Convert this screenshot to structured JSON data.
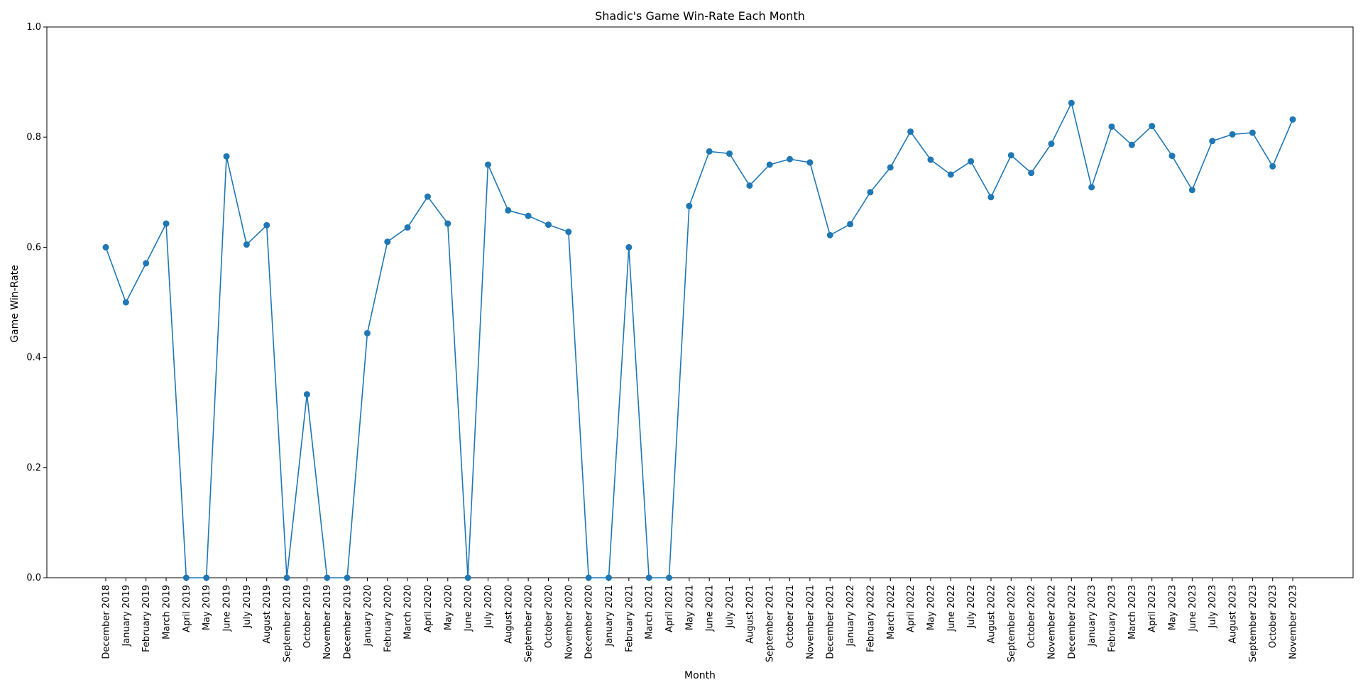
{
  "chart_data": {
    "type": "line",
    "title": "Shadic's Game Win-Rate Each Month",
    "xlabel": "Month",
    "ylabel": "Game Win-Rate",
    "ylim": [
      0,
      1
    ],
    "yticks": [
      "0.0",
      "0.2",
      "0.4",
      "0.6",
      "0.8",
      "1.0"
    ],
    "grid": false,
    "colors": {
      "series": "#1f77b4",
      "axes": "#000000"
    },
    "categories": [
      "December 2018",
      "January 2019",
      "February 2019",
      "March 2019",
      "April 2019",
      "May 2019",
      "June 2019",
      "July 2019",
      "August 2019",
      "September 2019",
      "October 2019",
      "November 2019",
      "December 2019",
      "January 2020",
      "February 2020",
      "March 2020",
      "April 2020",
      "May 2020",
      "June 2020",
      "July 2020",
      "August 2020",
      "September 2020",
      "October 2020",
      "November 2020",
      "December 2020",
      "January 2021",
      "February 2021",
      "March 2021",
      "April 2021",
      "May 2021",
      "June 2021",
      "July 2021",
      "August 2021",
      "September 2021",
      "October 2021",
      "November 2021",
      "December 2021",
      "January 2022",
      "February 2022",
      "March 2022",
      "April 2022",
      "May 2022",
      "June 2022",
      "July 2022",
      "August 2022",
      "September 2022",
      "October 2022",
      "November 2022",
      "December 2022",
      "January 2023",
      "February 2023",
      "March 2023",
      "April 2023",
      "May 2023",
      "June 2023",
      "July 2023",
      "August 2023",
      "September 2023",
      "October 2023",
      "November 2023"
    ],
    "series": [
      {
        "values": [
          0.6,
          0.5,
          0.571,
          0.643,
          0.0,
          0.0,
          0.765,
          0.605,
          0.64,
          0.0,
          0.333,
          0.0,
          0.0,
          0.444,
          0.61,
          0.636,
          0.692,
          0.643,
          0.0,
          0.75,
          0.667,
          0.657,
          0.641,
          0.628,
          0.0,
          0.0,
          0.6,
          0.0,
          0.0,
          0.675,
          0.774,
          0.77,
          0.712,
          0.75,
          0.76,
          0.754,
          0.622,
          0.642,
          0.7,
          0.745,
          0.81,
          0.759,
          0.732,
          0.756,
          0.691,
          0.767,
          0.735,
          0.788,
          0.862,
          0.709,
          0.819,
          0.786,
          0.82,
          0.766,
          0.704,
          0.793,
          0.805,
          0.808,
          0.747,
          0.832
        ]
      }
    ]
  }
}
